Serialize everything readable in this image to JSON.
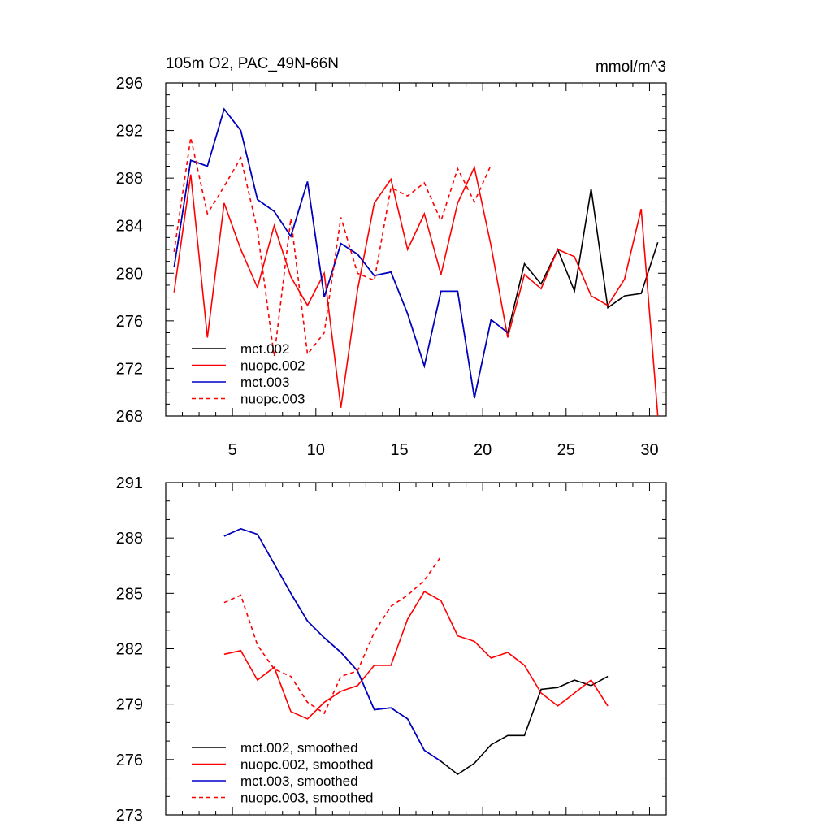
{
  "chart_data": [
    {
      "type": "line",
      "title": "105m O2, PAC_49N-66N",
      "units": "mmol/m^3",
      "xlabel": "",
      "ylabel": "",
      "xlim": [
        1,
        31
      ],
      "ylim": [
        268,
        296
      ],
      "xticks": [
        5,
        10,
        15,
        20,
        25,
        30
      ],
      "yticks": [
        268,
        272,
        276,
        280,
        284,
        288,
        292,
        296
      ],
      "legend_position": "bottom-left",
      "series": [
        {
          "name": "mct.002",
          "color": "#000000",
          "dash": "solid",
          "x": [
            1.5,
            2.5,
            3.5,
            4.5,
            5.5,
            6.5,
            7.5,
            8.5,
            9.5,
            10.5,
            11.5,
            12.5,
            13.5,
            14.5,
            15.5,
            16.5,
            17.5,
            18.5,
            19.5,
            20.5,
            21.5,
            22.5,
            23.5,
            24.5,
            25.5,
            26.5,
            27.5,
            28.5,
            29.5,
            30.5
          ],
          "values": [
            280.5,
            289.5,
            289,
            293.8,
            292,
            286.2,
            285.2,
            283.1,
            287.7,
            278,
            282.5,
            281.6,
            279.8,
            280.1,
            276.6,
            272.2,
            278.5,
            278.5,
            269.5,
            276.1,
            275,
            280.8,
            279.1,
            282,
            278.5,
            287.1,
            277.1,
            278.1,
            278.3,
            282.6
          ]
        },
        {
          "name": "nuopc.002",
          "color": "#ff0000",
          "dash": "solid",
          "x": [
            1.5,
            2.5,
            3.5,
            4.5,
            5.5,
            6.5,
            7.5,
            8.5,
            9.5,
            10.5,
            11.5,
            12.5,
            13.5,
            14.5,
            15.5,
            16.5,
            17.5,
            18.5,
            19.5,
            20.5,
            21.5,
            22.5,
            23.5,
            24.5,
            25.5,
            26.5,
            27.5,
            28.5,
            29.5,
            30.5
          ],
          "values": [
            278.4,
            288.3,
            274.6,
            285.9,
            282,
            278.8,
            284,
            279.7,
            277.3,
            280,
            268.7,
            278.6,
            285.9,
            287.9,
            282,
            285,
            279.9,
            285.9,
            288.9,
            282.3,
            274.6,
            279.9,
            278.7,
            282,
            281.4,
            278.1,
            277.3,
            279.5,
            285.4,
            268
          ]
        },
        {
          "name": "mct.003",
          "color": "#0000cc",
          "dash": "solid",
          "x": [
            1.5,
            2.5,
            3.5,
            4.5,
            5.5,
            6.5,
            7.5,
            8.5,
            9.5,
            10.5,
            11.5,
            12.5,
            13.5,
            14.5,
            15.5,
            16.5,
            17.5,
            18.5,
            19.5,
            20.5,
            21.5
          ],
          "values": [
            280.5,
            289.5,
            289,
            293.8,
            292,
            286.2,
            285.2,
            283.1,
            287.7,
            278,
            282.5,
            281.6,
            279.8,
            280.1,
            276.6,
            272.2,
            278.5,
            278.5,
            269.5,
            276.1,
            275
          ]
        },
        {
          "name": "nuopc.003",
          "color": "#ff0000",
          "dash": "dashed",
          "x": [
            1.5,
            2.5,
            3.5,
            4.5,
            5.5,
            6.5,
            7.5,
            8.5,
            9.5,
            10.5,
            11.5,
            12.5,
            13.5,
            14.5,
            15.5,
            16.5,
            17.5,
            18.5,
            19.5,
            20.5
          ],
          "values": [
            281.8,
            291.4,
            285,
            287.3,
            289.7,
            283.6,
            273,
            284.6,
            273.2,
            275,
            284.7,
            280,
            279.4,
            287.2,
            286.5,
            287.6,
            284.4,
            288.8,
            286,
            289.1
          ]
        }
      ]
    },
    {
      "type": "line",
      "title": "",
      "xlabel": "",
      "ylabel": "",
      "xlim": [
        1,
        31
      ],
      "ylim": [
        273,
        291
      ],
      "xticks": [
        5,
        10,
        15,
        20,
        25,
        30
      ],
      "yticks": [
        273,
        276,
        279,
        282,
        285,
        288,
        291
      ],
      "legend_position": "bottom-left",
      "series": [
        {
          "name": "mct.002, smoothed",
          "color": "#000000",
          "dash": "solid",
          "x": [
            4.5,
            5.5,
            6.5,
            7.5,
            8.5,
            9.5,
            10.5,
            11.5,
            12.5,
            13.5,
            14.5,
            15.5,
            16.5,
            17.5,
            18.5,
            19.5,
            20.5,
            21.5,
            22.5,
            23.5,
            24.5,
            25.5,
            26.5,
            27.5
          ],
          "values": [
            288.1,
            288.5,
            288.2,
            286.6,
            285,
            283.5,
            282.6,
            281.8,
            280.8,
            278.7,
            278.8,
            278.2,
            276.5,
            275.9,
            275.2,
            275.8,
            276.8,
            277.3,
            277.3,
            279.8,
            279.9,
            280.3,
            280,
            280.5
          ]
        },
        {
          "name": "nuopc.002, smoothed",
          "color": "#ff0000",
          "dash": "solid",
          "x": [
            4.5,
            5.5,
            6.5,
            7.5,
            8.5,
            9.5,
            10.5,
            11.5,
            12.5,
            13.5,
            14.5,
            15.5,
            16.5,
            17.5,
            18.5,
            19.5,
            20.5,
            21.5,
            22.5,
            23.5,
            24.5,
            25.5,
            26.5,
            27.5
          ],
          "values": [
            281.7,
            281.9,
            280.3,
            281,
            278.6,
            278.2,
            279.1,
            279.7,
            280,
            281.1,
            281.1,
            283.6,
            285.1,
            284.6,
            282.7,
            282.4,
            281.5,
            281.8,
            281.1,
            279.6,
            278.9,
            279.6,
            280.3,
            278.9
          ]
        },
        {
          "name": "mct.003, smoothed",
          "color": "#0000cc",
          "dash": "solid",
          "x": [
            4.5,
            5.5,
            6.5,
            7.5,
            8.5,
            9.5,
            10.5,
            11.5,
            12.5,
            13.5,
            14.5,
            15.5,
            16.5,
            17.5
          ],
          "values": [
            288.1,
            288.5,
            288.2,
            286.6,
            285,
            283.5,
            282.6,
            281.8,
            280.8,
            278.7,
            278.8,
            278.2,
            276.5,
            275.9
          ]
        },
        {
          "name": "nuopc.003, smoothed",
          "color": "#ff0000",
          "dash": "dashed",
          "x": [
            4.5,
            5.5,
            6.5,
            7.5,
            8.5,
            9.5,
            10.5,
            11.5,
            12.5,
            13.5,
            14.5,
            15.5,
            16.5,
            17.5
          ],
          "values": [
            284.5,
            284.9,
            282.2,
            280.9,
            280.5,
            279.1,
            278.5,
            280.5,
            280.8,
            282.9,
            284.3,
            284.9,
            285.7,
            287
          ]
        }
      ]
    }
  ]
}
